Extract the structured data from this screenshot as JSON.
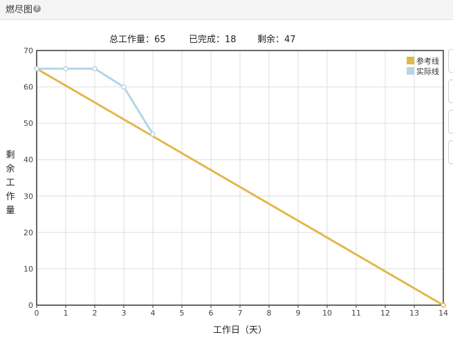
{
  "header": {
    "title": "燃尽图",
    "help_icon": "question-circle-icon"
  },
  "summary": {
    "total_label": "总工作量：",
    "total_value": "65",
    "done_label": "已完成：",
    "done_value": "18",
    "remaining_label": "剩余：",
    "remaining_value": "47"
  },
  "chart_data": {
    "type": "line",
    "title": "",
    "xlabel": "工作日（天）",
    "ylabel": "剩余工作量",
    "xlim": [
      0,
      14
    ],
    "ylim": [
      0,
      70
    ],
    "x_ticks": [
      0,
      1,
      2,
      3,
      4,
      5,
      6,
      7,
      8,
      9,
      10,
      11,
      12,
      13,
      14
    ],
    "y_ticks": [
      0,
      10,
      20,
      30,
      40,
      50,
      60,
      70
    ],
    "grid": true,
    "legend_position": "top-right",
    "series": [
      {
        "name": "参考线",
        "color": "#e3b84a",
        "x": [
          0,
          14
        ],
        "y": [
          65,
          0
        ]
      },
      {
        "name": "实际线",
        "color": "#b7d4e6",
        "x": [
          0,
          1,
          2,
          3,
          4
        ],
        "y": [
          65,
          65,
          65,
          60,
          47
        ]
      }
    ]
  }
}
